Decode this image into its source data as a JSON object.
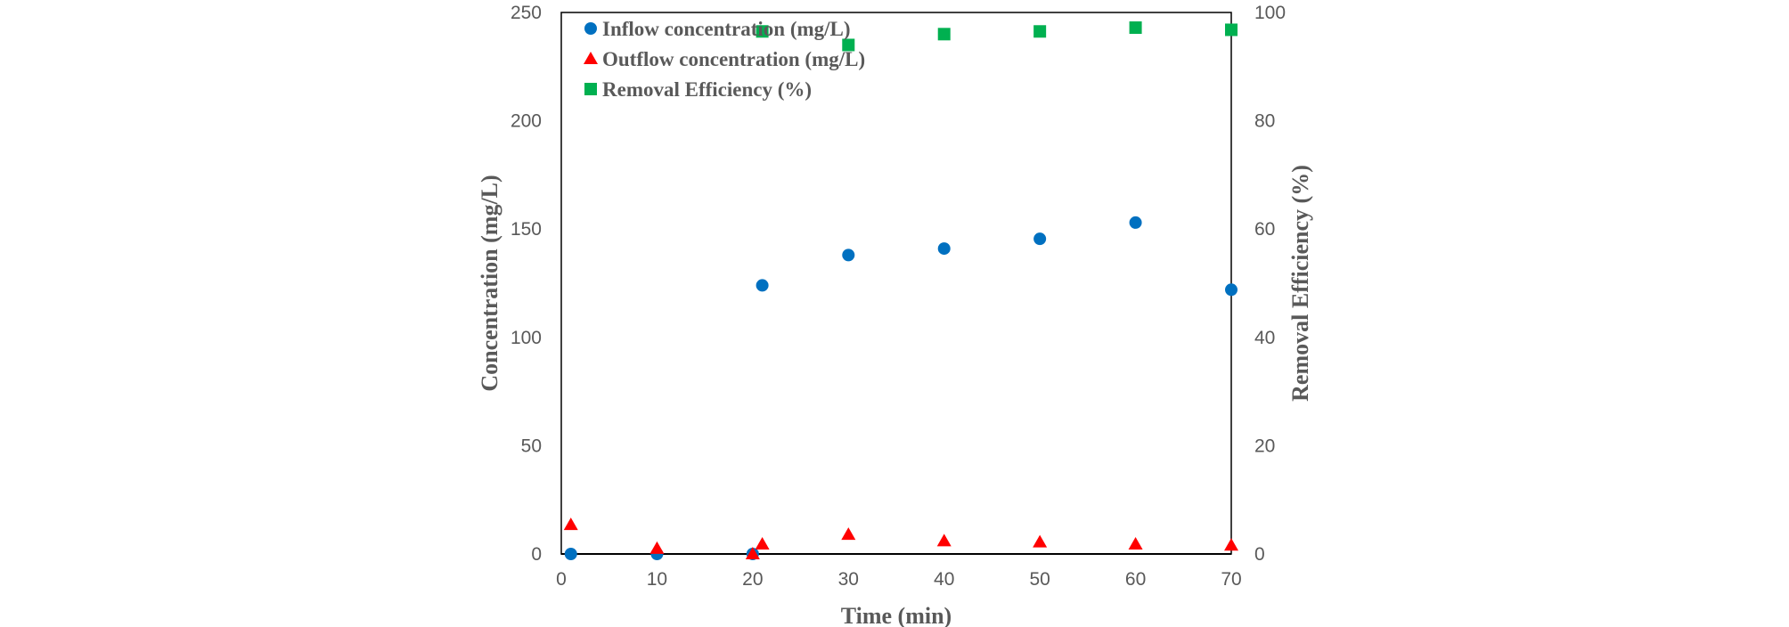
{
  "chart_data": {
    "type": "scatter",
    "xlabel": "Time (min)",
    "ylabel": "Concentration (mg/L)",
    "y2label": "Removal Efficiency (%)",
    "xlim": [
      0,
      70
    ],
    "ylim": [
      0,
      250
    ],
    "y2lim": [
      0,
      100
    ],
    "xticks": [
      0,
      10,
      20,
      30,
      40,
      50,
      60,
      70
    ],
    "yticks": [
      0,
      50,
      100,
      150,
      200,
      250
    ],
    "y2ticks": [
      0,
      20,
      40,
      60,
      80,
      100
    ],
    "grid": false,
    "legend_position": "top-left",
    "series": [
      {
        "name": "Inflow concentration (mg/L)",
        "axis": "left",
        "marker": "circle",
        "color": "#0070c0",
        "points": [
          [
            1,
            0
          ],
          [
            10,
            0
          ],
          [
            20,
            0
          ],
          [
            21,
            124
          ],
          [
            30,
            138
          ],
          [
            40,
            141
          ],
          [
            50,
            145.5
          ],
          [
            60,
            153
          ],
          [
            70,
            122
          ]
        ]
      },
      {
        "name": "Outflow concentration (mg/L)",
        "axis": "left",
        "marker": "triangle",
        "color": "#ff0000",
        "points": [
          [
            1,
            13.5
          ],
          [
            10,
            2.5
          ],
          [
            20,
            0
          ],
          [
            21,
            4.5
          ],
          [
            30,
            9
          ],
          [
            40,
            6
          ],
          [
            50,
            5.5
          ],
          [
            60,
            4.5
          ],
          [
            70,
            4
          ]
        ]
      },
      {
        "name": "Removal Efficiency (%)",
        "axis": "right",
        "marker": "square",
        "color": "#00b050",
        "points": [
          [
            21,
            96.5
          ],
          [
            30,
            94
          ],
          [
            40,
            96
          ],
          [
            50,
            96.5
          ],
          [
            60,
            97.2
          ],
          [
            70,
            96.8
          ]
        ]
      }
    ]
  }
}
